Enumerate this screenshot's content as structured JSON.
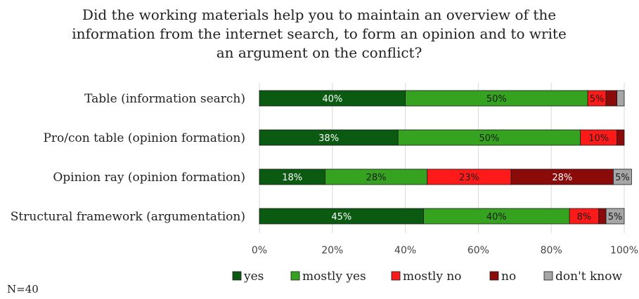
{
  "note": "N=40",
  "chart_data": {
    "type": "bar",
    "orientation": "horizontal",
    "stacked": true,
    "title_lines": [
      "Did the working materials help you to maintain an overview of the",
      "information from the internet search, to form an opinion and to write",
      "an argument on the conflict?"
    ],
    "categories": [
      "Table (information search)",
      "Pro/con table (opinion formation)",
      "Opinion ray (opinion formation)",
      "Structural framework (argumentation)"
    ],
    "series": [
      {
        "name": "yes",
        "color": "#0b5a12",
        "values": [
          40,
          38,
          18,
          45
        ],
        "labels": [
          "40%",
          "38%",
          "18%",
          "45%"
        ],
        "label_color": "#ffffff"
      },
      {
        "name": "mostly yes",
        "color": "#35a31f",
        "values": [
          50,
          50,
          28,
          40
        ],
        "labels": [
          "50%",
          "50%",
          "28%",
          "40%"
        ],
        "label_color": "#1a1a1a"
      },
      {
        "name": "mostly no",
        "color": "#ff1a1a",
        "values": [
          5,
          10,
          23,
          8
        ],
        "labels": [
          "5%",
          "10%",
          "23%",
          "8%"
        ],
        "label_color": "#1a1a1a"
      },
      {
        "name": "no",
        "color": "#8b0a0a",
        "values": [
          3,
          2,
          28,
          2
        ],
        "labels": [
          "",
          "",
          "28%",
          ""
        ],
        "label_color": "#ffffff"
      },
      {
        "name": "don't know",
        "color": "#a6a6a6",
        "values": [
          2,
          0,
          5,
          5
        ],
        "labels": [
          "",
          "",
          "5%",
          "5%"
        ],
        "label_color": "#1a1a1a"
      }
    ],
    "x_ticks": [
      "0%",
      "20%",
      "40%",
      "60%",
      "80%",
      "100%"
    ],
    "xlim": [
      0,
      100
    ],
    "grid": true,
    "legend_position": "bottom"
  }
}
